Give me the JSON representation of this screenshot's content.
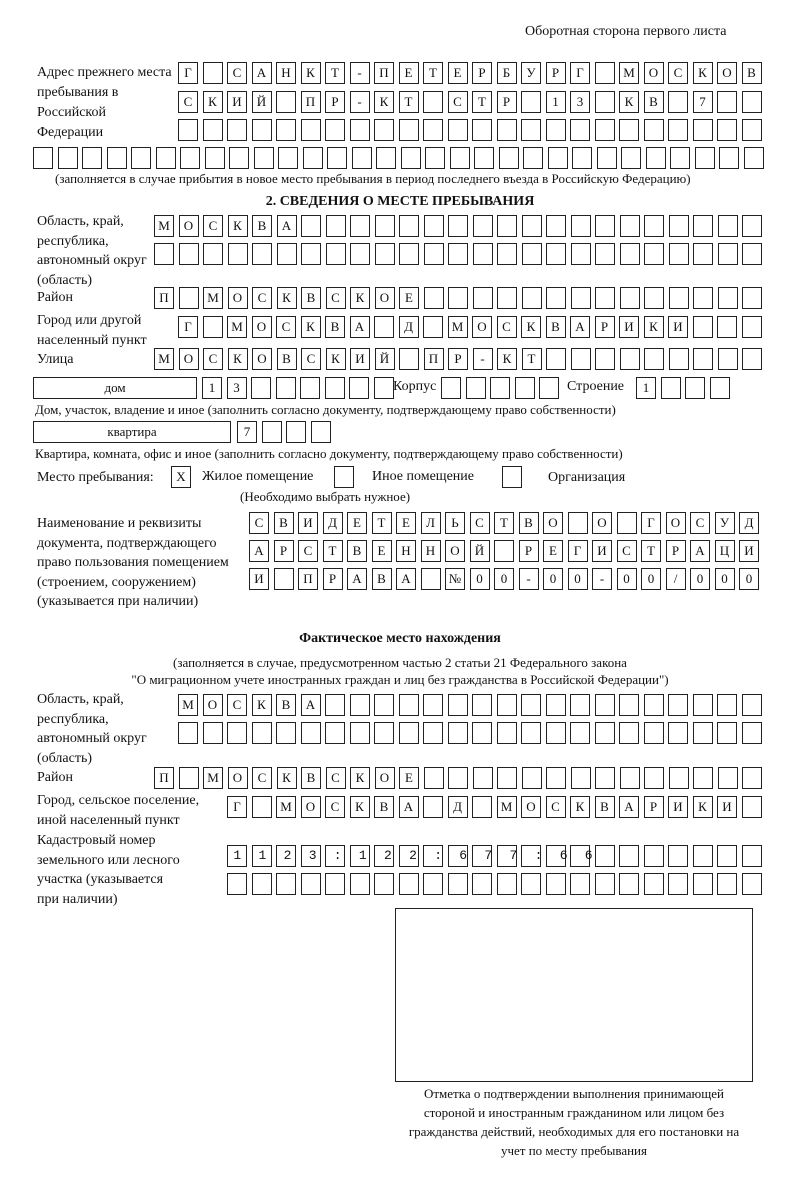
{
  "header": "Оборотная сторона первого листа",
  "previous_address": {
    "label": "Адрес прежнего места пребывания в Российской Федерации",
    "rows": [
      "Г_САНКТ-ПЕТЕРБУРГ_МОСКОВ",
      "СКИЙ_ПР-КТ_СТР_13_КВ_7__",
      "",
      ""
    ],
    "row_lengths": [
      24,
      24,
      24,
      30
    ],
    "note": "(заполняется в случае прибытия в новое место пребывания в период последнего въезда в Российскую Федерацию)"
  },
  "section2": {
    "title": "2. СВЕДЕНИЯ О МЕСТЕ ПРЕБЫВАНИЯ",
    "region_label": "Область, край, республика, автономный округ (область)",
    "region_rows": [
      "МОСКВА",
      ""
    ],
    "district_label": "Район",
    "district": "П_МОСКВСКОЕ",
    "city_label": "Город или другой населенный пункт",
    "city": "Г_МОСКВА_Д_МОСКВАРИКИ",
    "street_label": "Улица",
    "street": "МОСКОВСКИЙ_ПР-КТ",
    "house_type": "дом",
    "house_number": "13",
    "korpus_label": "Корпус",
    "korpus": "",
    "building_label": "Строение",
    "building": "1",
    "house_note": "Дом, участок, владение и иное (заполнить согласно документу, подтверждающему право собственности)",
    "apartment_type": "квартира",
    "apartment_number": "7",
    "apartment_note": "Квартира, комната, офис и иное (заполнить согласно документу, подтверждающему право собственности)",
    "place_label": "Место пребывания:",
    "place_options": [
      {
        "label": "Жилое помещение",
        "mark": "X"
      },
      {
        "label": "Иное помещение",
        "mark": ""
      },
      {
        "label": "Организация",
        "mark": ""
      }
    ],
    "place_hint": "(Необходимо выбрать нужное)",
    "doc_label": "Наименование и реквизиты документа, подтверждающего право пользования помещением (строением, сооружением) (указывается при наличии)",
    "doc_rows": [
      "СВИДЕТЕЛЬСТВО_О_ГОСУД",
      "АРСТВЕННОЙ_РЕГИСТРАЦИ",
      "И_ПРАВА_№00-00-00/000"
    ]
  },
  "actual": {
    "title": "Фактическое место нахождения",
    "note1": "(заполняется в случае, предусмотренном частью 2 статьи 21 Федерального закона",
    "note2": "\"О миграционном учете иностранных граждан и лиц без гражданства в Российской Федерации\")",
    "region_label": "Область, край, республика, автономный округ (область)",
    "region_rows": [
      "МОСКВА",
      ""
    ],
    "district_label": "Район",
    "district": "П_МОСКВСКОЕ",
    "city_label": "Город, сельское поселение, иной населенный пункт",
    "city": "Г_МОСКВА_Д_МОСКВАРИКИ",
    "cadastral_label": "Кадастровый номер земельного или лесного участка (указывается при наличии)",
    "cadastral_rows": [
      "1123:122:677:66",
      ""
    ]
  },
  "stamp_caption": "Отметка о подтверждении выполнения принимающей стороной и иностранным гражданином или лицом без гражданства действий, необходимых для его постановки на учет по месту пребывания"
}
